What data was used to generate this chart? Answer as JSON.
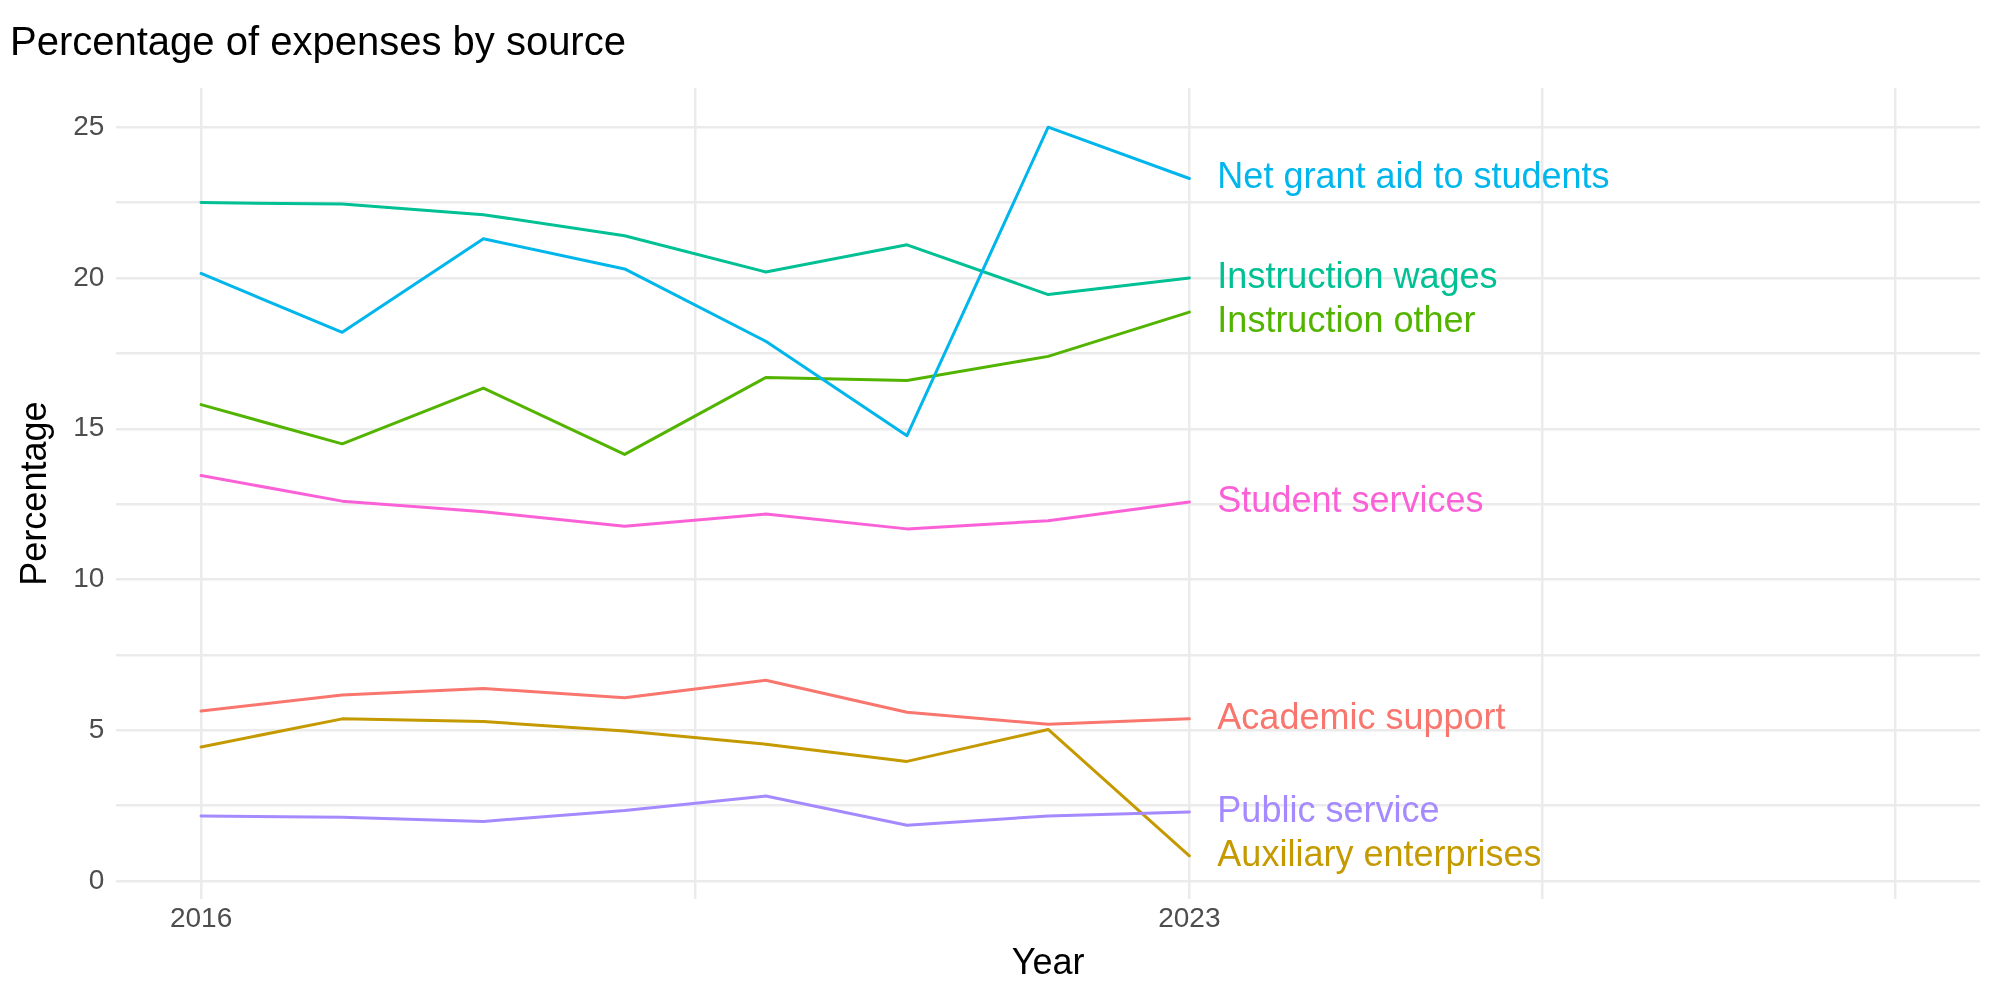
{
  "chart_data": {
    "type": "line",
    "title": "Percentage of expenses by source",
    "xlabel": "Year",
    "ylabel": "Percentage",
    "x": [
      2016,
      2017,
      2018,
      2019,
      2020,
      2021,
      2022,
      2023
    ],
    "series": [
      {
        "name": "Net grant aid to students",
        "color": "#00b6eb",
        "values": [
          20.15,
          18.2,
          21.3,
          20.3,
          17.9,
          14.77,
          25.0,
          23.3
        ]
      },
      {
        "name": "Instruction wages",
        "color": "#00c094",
        "values": [
          22.5,
          22.45,
          22.1,
          21.4,
          20.2,
          21.1,
          19.45,
          20.0
        ]
      },
      {
        "name": "Instruction other",
        "color": "#53b400",
        "values": [
          15.8,
          14.5,
          16.35,
          14.15,
          16.7,
          16.6,
          17.4,
          18.87
        ]
      },
      {
        "name": "Student services",
        "color": "#fb61d7",
        "values": [
          13.45,
          12.6,
          12.25,
          11.77,
          12.17,
          11.68,
          11.95,
          12.57
        ]
      },
      {
        "name": "Academic support",
        "color": "#f8766d",
        "values": [
          5.64,
          6.17,
          6.39,
          6.08,
          6.66,
          5.6,
          5.2,
          5.38
        ]
      },
      {
        "name": "Public service",
        "color": "#a58aff",
        "values": [
          2.16,
          2.12,
          1.98,
          2.34,
          2.82,
          1.85,
          2.16,
          2.29
        ]
      },
      {
        "name": "Auxiliary enterprises",
        "color": "#c49a00",
        "values": [
          4.45,
          5.38,
          5.29,
          4.98,
          4.54,
          3.97,
          5.03,
          0.84
        ]
      }
    ],
    "xlim": [
      2015.4,
      2028.6
    ],
    "xticks": [
      2016,
      {
        "value": 2019.5,
        "label": null
      },
      2023,
      {
        "value": 2025.5,
        "label": null
      },
      {
        "value": 2028,
        "label": null
      }
    ],
    "ylim": [
      -0.6,
      26.3
    ],
    "yticks": [
      0,
      {
        "value": 2.5,
        "label": null
      },
      5,
      {
        "value": 7.5,
        "label": null
      },
      10,
      {
        "value": 12.5,
        "label": null
      },
      15,
      {
        "value": 17.5,
        "label": null
      },
      20,
      {
        "value": 22.5,
        "label": null
      },
      25
    ],
    "grid": true,
    "legend": false,
    "line_style": "solid",
    "marker": "none"
  }
}
